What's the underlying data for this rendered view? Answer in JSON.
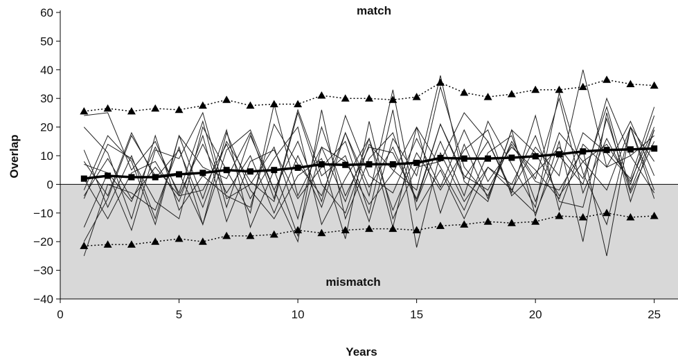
{
  "chart_data": {
    "type": "line",
    "title": "",
    "xlabel": "Years",
    "ylabel": "Overlap",
    "xlim": [
      0,
      26
    ],
    "ylim": [
      -40,
      60
    ],
    "xticks": [
      0,
      5,
      10,
      15,
      20,
      25
    ],
    "yticks": [
      -40,
      -30,
      -20,
      -10,
      0,
      10,
      20,
      30,
      40,
      50,
      60
    ],
    "xtick_labels": [
      "0",
      "5",
      "10",
      "15",
      "20",
      "25"
    ],
    "ytick_labels": [
      "−40",
      "−30",
      "−20",
      "−10",
      "0",
      "10",
      "20",
      "30",
      "40",
      "50",
      "60"
    ],
    "grid": false,
    "legend": "none",
    "annotations": {
      "match": "match",
      "mismatch": "mismatch"
    },
    "colors": {
      "individual": "#222222",
      "mean": "#000000",
      "bounds": "#000000",
      "mismatch_fill": "#d8d8d8"
    },
    "x": [
      1,
      2,
      3,
      4,
      5,
      6,
      7,
      8,
      9,
      10,
      11,
      12,
      13,
      14,
      15,
      16,
      17,
      18,
      19,
      20,
      21,
      22,
      23,
      24,
      25
    ],
    "series": [
      {
        "role": "mean",
        "marker": "square",
        "line": "bold",
        "values": [
          2,
          3,
          2.5,
          2.5,
          3.5,
          4,
          5,
          4.5,
          5,
          5.8,
          7,
          6.8,
          7,
          7,
          7.5,
          9.2,
          9,
          9,
          9.3,
          9.8,
          10.5,
          11.5,
          12,
          12.2,
          12.5
        ]
      },
      {
        "role": "upper",
        "marker": "triangle",
        "line": "dotted",
        "values": [
          25.5,
          26.5,
          25.5,
          26.5,
          26,
          27.5,
          29.5,
          27.5,
          28,
          28,
          31,
          30,
          30,
          29.5,
          30.5,
          35.5,
          32,
          30.5,
          31.5,
          33,
          33,
          34,
          36.5,
          35,
          34.5
        ]
      },
      {
        "role": "lower",
        "marker": "triangle",
        "line": "dotted",
        "values": [
          -21.5,
          -21,
          -21,
          -20,
          -19,
          -20,
          -18,
          -18,
          -17.5,
          -16,
          -17,
          -16,
          -15.5,
          -15.5,
          -16,
          -14.5,
          -14,
          -13,
          -13.5,
          -13,
          -11,
          -11.5,
          -10,
          -11.5,
          -11
        ]
      },
      {
        "role": "individual",
        "values": [
          8,
          -4,
          18,
          2,
          12,
          -8,
          15,
          1,
          -6,
          25,
          0,
          -10,
          14,
          5,
          -2,
          34,
          6,
          -4,
          15,
          2,
          30,
          -3,
          16,
          0,
          24
        ]
      },
      {
        "role": "individual",
        "values": [
          -15,
          4,
          -6,
          13,
          -3,
          22,
          -8,
          17,
          -2,
          -20,
          26,
          -12,
          9,
          18,
          -6,
          15,
          -4,
          22,
          7,
          -8,
          32,
          4,
          -14,
          20,
          8
        ]
      },
      {
        "role": "individual",
        "values": [
          12,
          -8,
          10,
          -12,
          17,
          -5,
          19,
          -15,
          5,
          -18,
          13,
          -6,
          16,
          -15,
          20,
          -10,
          14,
          -5,
          19,
          -11,
          15,
          -20,
          25,
          -6,
          19
        ]
      },
      {
        "role": "individual",
        "values": [
          20,
          11,
          -12,
          17,
          -9,
          3,
          -4,
          -8,
          21,
          7,
          -4,
          18,
          -1,
          13,
          -6,
          21,
          3,
          -2,
          14,
          1,
          -2,
          12,
          -25,
          20,
          -2
        ]
      },
      {
        "role": "individual",
        "values": [
          -25,
          0,
          -3,
          -9,
          13,
          -14,
          18,
          -2,
          -12,
          3,
          9,
          -19,
          22,
          -12,
          6,
          8,
          25,
          15,
          -3,
          24,
          -9,
          14,
          6,
          22,
          3
        ]
      },
      {
        "role": "individual",
        "values": [
          2,
          -12,
          4,
          8,
          -6,
          17,
          -13,
          8,
          12,
          -5,
          6,
          15,
          -10,
          26,
          -22,
          11,
          -6,
          6,
          0,
          17,
          -6,
          -8,
          23,
          -3,
          15
        ]
      },
      {
        "role": "individual",
        "values": [
          24,
          25,
          5,
          15,
          -4,
          -2,
          14,
          -5,
          9,
          20,
          -14,
          2,
          16,
          -9,
          11,
          -2,
          12,
          19,
          -4,
          4,
          13,
          2,
          27,
          -2,
          19
        ]
      },
      {
        "role": "individual",
        "values": [
          -5,
          14,
          9,
          -6,
          -12,
          20,
          5,
          -10,
          28,
          -4,
          13,
          8,
          -7,
          4,
          20,
          6,
          -9,
          11,
          17,
          -6,
          18,
          8,
          -2,
          20,
          -5
        ]
      },
      {
        "role": "individual",
        "values": [
          -20,
          -5,
          17,
          3,
          4,
          -14,
          12,
          19,
          -2,
          15,
          -6,
          24,
          3,
          -3,
          16,
          -1,
          19,
          1,
          13,
          5,
          -5,
          18,
          11,
          2,
          27
        ]
      },
      {
        "role": "individual",
        "values": [
          7,
          4,
          -16,
          12,
          9,
          25,
          -5,
          0,
          13,
          -12,
          20,
          -4,
          13,
          11,
          -5,
          21,
          2,
          15,
          -2,
          -10,
          10,
          0,
          30,
          10,
          17
        ]
      },
      {
        "role": "individual",
        "values": [
          -2,
          17,
          8,
          -14,
          17,
          6,
          2,
          18,
          -5,
          26,
          3,
          10,
          -13,
          16,
          3,
          38,
          1,
          -6,
          19,
          11,
          -4,
          8,
          14,
          1,
          20
        ]
      },
      {
        "role": "individual",
        "values": [
          -4,
          9,
          -5,
          6,
          -4,
          14,
          -3,
          10,
          -10,
          10,
          -8,
          18,
          -4,
          33,
          -9,
          5,
          -12,
          6,
          -2,
          13,
          3,
          40,
          6,
          10,
          -3
        ]
      }
    ]
  }
}
